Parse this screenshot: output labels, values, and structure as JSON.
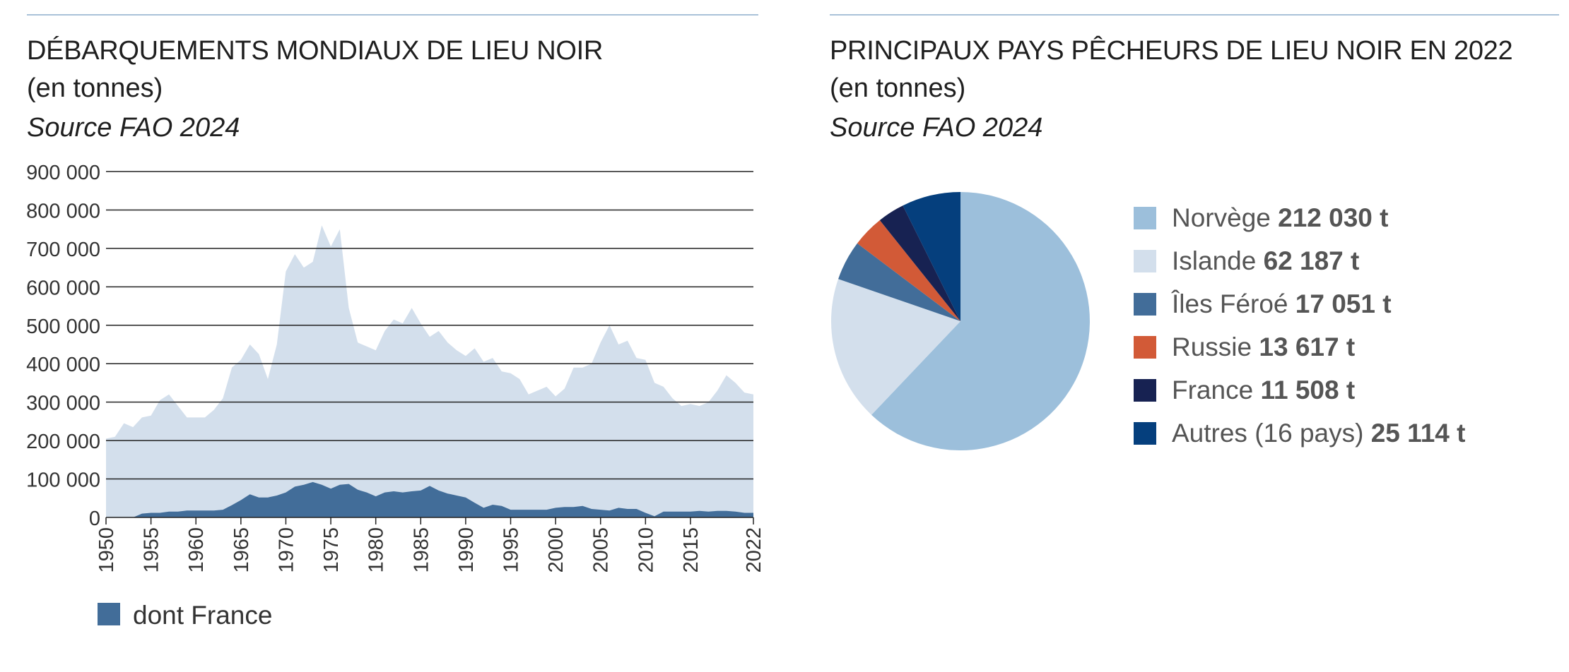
{
  "left_panel": {
    "title": "DÉBARQUEMENTS MONDIAUX DE LIEU NOIR",
    "subtitle": "(en tonnes)",
    "source": "Source FAO 2024",
    "legend_label": "dont France"
  },
  "right_panel": {
    "title": "PRINCIPAUX PAYS PÊCHEURS DE LIEU NOIR EN 2022",
    "subtitle": "(en tonnes)",
    "source": "Source FAO 2024"
  },
  "colors": {
    "world_area": "#d3dfec",
    "france_area": "#426d99",
    "gridline": "#222222",
    "rule": "#a9c2d8"
  },
  "chart_data": [
    {
      "type": "area",
      "title": "DÉBARQUEMENTS MONDIAUX DE LIEU NOIR",
      "subtitle": "(en tonnes)",
      "ylim": [
        0,
        900000
      ],
      "yticks": [
        0,
        100000,
        200000,
        300000,
        400000,
        500000,
        600000,
        700000,
        800000,
        900000
      ],
      "ytick_labels": [
        "0",
        "100 000",
        "200 000",
        "300 000",
        "400 000",
        "500 000",
        "600 000",
        "700 000",
        "800 000",
        "900 000"
      ],
      "xlim": [
        1950,
        2022
      ],
      "xticks": [
        1950,
        1955,
        1960,
        1965,
        1970,
        1975,
        1980,
        1985,
        1990,
        1995,
        2000,
        2005,
        2010,
        2015,
        2022
      ],
      "grid": true,
      "legend_position": "bottom-left",
      "x": [
        1950,
        1951,
        1952,
        1953,
        1954,
        1955,
        1956,
        1957,
        1958,
        1959,
        1960,
        1961,
        1962,
        1963,
        1964,
        1965,
        1966,
        1967,
        1968,
        1969,
        1970,
        1971,
        1972,
        1973,
        1974,
        1975,
        1976,
        1977,
        1978,
        1979,
        1980,
        1981,
        1982,
        1983,
        1984,
        1985,
        1986,
        1987,
        1988,
        1989,
        1990,
        1991,
        1992,
        1993,
        1994,
        1995,
        1996,
        1997,
        1998,
        1999,
        2000,
        2001,
        2002,
        2003,
        2004,
        2005,
        2006,
        2007,
        2008,
        2009,
        2010,
        2011,
        2012,
        2013,
        2014,
        2015,
        2016,
        2017,
        2018,
        2019,
        2020,
        2021,
        2022
      ],
      "series": [
        {
          "total": true,
          "color": "#d3dfec",
          "values": [
            205000,
            210000,
            245000,
            235000,
            260000,
            265000,
            305000,
            320000,
            290000,
            260000,
            260000,
            260000,
            280000,
            310000,
            390000,
            410000,
            450000,
            425000,
            360000,
            450000,
            640000,
            685000,
            650000,
            665000,
            760000,
            705000,
            750000,
            545000,
            455000,
            445000,
            435000,
            485000,
            515000,
            505000,
            545000,
            505000,
            470000,
            485000,
            455000,
            435000,
            420000,
            440000,
            405000,
            415000,
            380000,
            375000,
            360000,
            320000,
            330000,
            340000,
            315000,
            335000,
            390000,
            390000,
            400000,
            455000,
            500000,
            450000,
            460000,
            415000,
            410000,
            350000,
            340000,
            310000,
            290000,
            295000,
            290000,
            300000,
            330000,
            370000,
            350000,
            325000,
            320000
          ]
        },
        {
          "name": "dont France",
          "color": "#426d99",
          "values": [
            0,
            0,
            0,
            0,
            10000,
            12000,
            12000,
            15000,
            15000,
            18000,
            18000,
            18000,
            18000,
            20000,
            32000,
            45000,
            60000,
            52000,
            52000,
            57000,
            65000,
            80000,
            85000,
            92000,
            85000,
            75000,
            85000,
            87000,
            72000,
            65000,
            55000,
            65000,
            68000,
            65000,
            68000,
            70000,
            82000,
            70000,
            62000,
            57000,
            52000,
            38000,
            25000,
            33000,
            30000,
            20000,
            20000,
            20000,
            20000,
            20000,
            25000,
            27000,
            27000,
            30000,
            22000,
            20000,
            18000,
            25000,
            22000,
            22000,
            12000,
            3000,
            15000,
            15000,
            15000,
            15000,
            17000,
            15000,
            17000,
            17000,
            15000,
            12000,
            12000
          ]
        }
      ]
    },
    {
      "type": "pie",
      "title": "PRINCIPAUX PAYS PÊCHEURS DE LIEU NOIR EN 2022",
      "subtitle": "(en tonnes)",
      "legend_position": "right",
      "slices": [
        {
          "label": "Norvège",
          "value": 212030,
          "value_label": "212 030 t",
          "color": "#9cbfdb"
        },
        {
          "label": "Islande",
          "value": 62187,
          "value_label": "62 187 t",
          "color": "#d3dfec"
        },
        {
          "label": "Îles Féroé",
          "value": 17051,
          "value_label": "17 051 t",
          "color": "#426d99"
        },
        {
          "label": "Russie",
          "value": 13617,
          "value_label": "13 617 t",
          "color": "#d25a37"
        },
        {
          "label": "France",
          "value": 11508,
          "value_label": "11 508 t",
          "color": "#172252"
        },
        {
          "label": "Autres (16 pays)",
          "value": 25114,
          "value_label": "25 114 t",
          "color": "#053f7d"
        }
      ]
    }
  ]
}
